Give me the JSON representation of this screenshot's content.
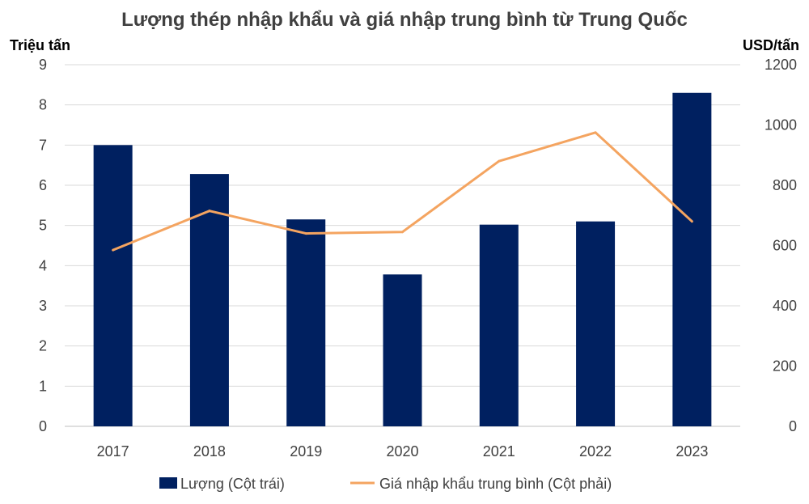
{
  "chart_data": {
    "type": "bar+line",
    "title": "Lượng thép nhập khẩu và giá nhập trung bình từ Trung Quốc",
    "categories": [
      "2017",
      "2018",
      "2019",
      "2020",
      "2021",
      "2022",
      "2023"
    ],
    "y_left": {
      "label": "Triệu tấn",
      "range": [
        0,
        9
      ],
      "ticks": [
        "0",
        "1",
        "2",
        "3",
        "4",
        "5",
        "6",
        "7",
        "8",
        "9"
      ]
    },
    "y_right": {
      "label": "USD/tấn",
      "range": [
        0,
        1200
      ],
      "ticks": [
        "0",
        "200",
        "400",
        "600",
        "800",
        "1000",
        "1200"
      ]
    },
    "series": [
      {
        "name": "Lượng (Cột trái)",
        "type": "bar",
        "axis": "left",
        "color": "#002060",
        "values": [
          7.0,
          6.28,
          5.15,
          3.78,
          5.02,
          5.1,
          8.3
        ]
      },
      {
        "name": "Giá nhập khẩu trung bình (Cột phải)",
        "type": "line",
        "axis": "right",
        "color": "#F4A460",
        "values": [
          585,
          715,
          640,
          645,
          880,
          975,
          680
        ]
      }
    ],
    "grid": true,
    "legend": "bottom"
  }
}
